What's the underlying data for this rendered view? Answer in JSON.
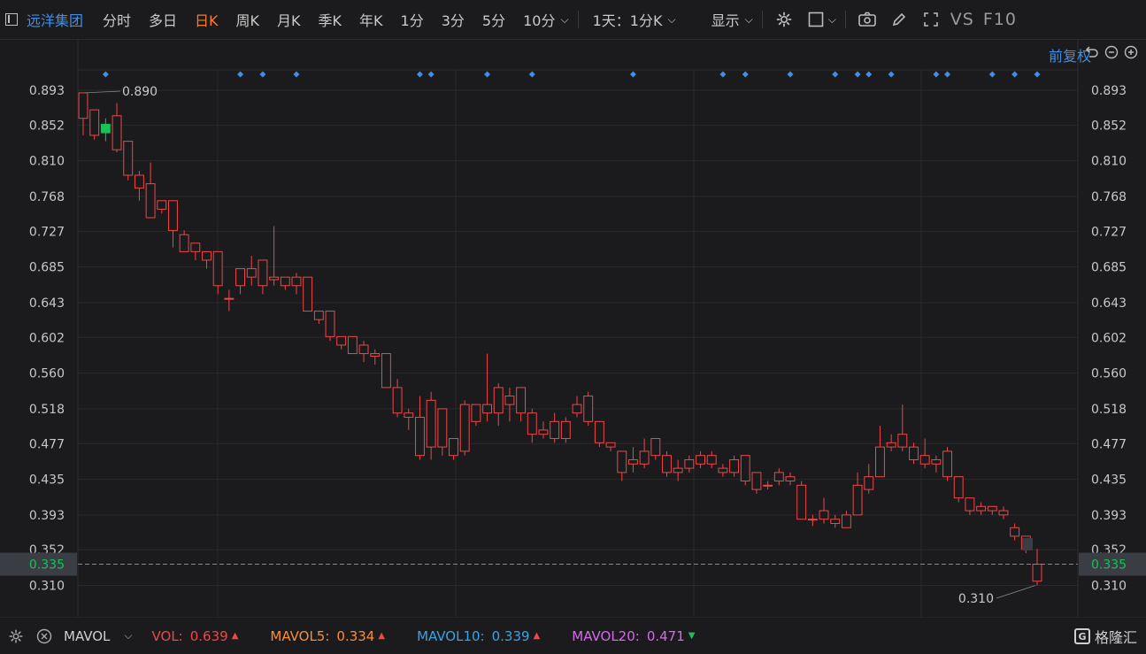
{
  "toolbar": {
    "stock_name": "远洋集团",
    "tabs": [
      "分时",
      "多日",
      "日K",
      "周K",
      "月K",
      "季K",
      "年K",
      "1分",
      "3分",
      "5分",
      "10分"
    ],
    "active_tab": "日K",
    "period_selector": "1天：1分K",
    "display_label": "显示",
    "vs_label": "VS",
    "f10_label": "F10"
  },
  "adjust_label": "前复权",
  "bottom": {
    "indicator": "MAVOL",
    "vol_label": "VOL:",
    "vol_value": "0.639",
    "mavol5_label": "MAVOL5:",
    "mavol5_value": "0.334",
    "mavol10_label": "MAVOL10:",
    "mavol10_value": "0.339",
    "mavol20_label": "MAVOL20:",
    "mavol20_value": "0.471",
    "watermark": "格隆汇"
  },
  "colors": {
    "up": "#f04646",
    "down": "#18c256",
    "mavol5": "#ff8c2e",
    "mavol10": "#36a4e8",
    "mavol20": "#d36be8",
    "accent": "#3f8fe6",
    "current_price_line": "#e6673a"
  },
  "chart_data": {
    "type": "candlestick",
    "y_ticks": [
      "0.893",
      "0.852",
      "0.810",
      "0.768",
      "0.727",
      "0.685",
      "0.643",
      "0.602",
      "0.560",
      "0.518",
      "0.477",
      "0.435",
      "0.393",
      "0.352",
      "0.310"
    ],
    "ylim": [
      0.272,
      0.917
    ],
    "current_price": "0.335",
    "high_label": "0.890",
    "low_label": "0.310",
    "grid": true,
    "candles": [
      {
        "o": 0.86,
        "h": 0.89,
        "l": 0.84,
        "c": 0.89
      },
      {
        "o": 0.84,
        "h": 0.87,
        "l": 0.835,
        "c": 0.87
      },
      {
        "o": 0.853,
        "h": 0.86,
        "l": 0.833,
        "c": 0.843
      },
      {
        "o": 0.823,
        "h": 0.878,
        "l": 0.82,
        "c": 0.863
      },
      {
        "o": 0.793,
        "h": 0.833,
        "l": 0.787,
        "c": 0.833
      },
      {
        "o": 0.778,
        "h": 0.798,
        "l": 0.763,
        "c": 0.793
      },
      {
        "o": 0.743,
        "h": 0.808,
        "l": 0.743,
        "c": 0.783
      },
      {
        "o": 0.753,
        "h": 0.763,
        "l": 0.748,
        "c": 0.763
      },
      {
        "o": 0.728,
        "h": 0.763,
        "l": 0.708,
        "c": 0.763
      },
      {
        "o": 0.703,
        "h": 0.728,
        "l": 0.703,
        "c": 0.723
      },
      {
        "o": 0.703,
        "h": 0.713,
        "l": 0.693,
        "c": 0.713
      },
      {
        "o": 0.693,
        "h": 0.703,
        "l": 0.683,
        "c": 0.703
      },
      {
        "o": 0.663,
        "h": 0.703,
        "l": 0.653,
        "c": 0.703
      },
      {
        "o": 0.648,
        "h": 0.658,
        "l": 0.633,
        "c": 0.648
      },
      {
        "o": 0.663,
        "h": 0.683,
        "l": 0.653,
        "c": 0.683
      },
      {
        "o": 0.673,
        "h": 0.698,
        "l": 0.663,
        "c": 0.683
      },
      {
        "o": 0.663,
        "h": 0.693,
        "l": 0.653,
        "c": 0.693
      },
      {
        "o": 0.67,
        "h": 0.733,
        "l": 0.663,
        "c": 0.673
      },
      {
        "o": 0.663,
        "h": 0.673,
        "l": 0.658,
        "c": 0.673
      },
      {
        "o": 0.663,
        "h": 0.678,
        "l": 0.653,
        "c": 0.673
      },
      {
        "o": 0.633,
        "h": 0.673,
        "l": 0.633,
        "c": 0.673
      },
      {
        "o": 0.623,
        "h": 0.633,
        "l": 0.618,
        "c": 0.633
      },
      {
        "o": 0.603,
        "h": 0.633,
        "l": 0.598,
        "c": 0.633
      },
      {
        "o": 0.593,
        "h": 0.603,
        "l": 0.588,
        "c": 0.603
      },
      {
        "o": 0.583,
        "h": 0.603,
        "l": 0.583,
        "c": 0.603
      },
      {
        "o": 0.583,
        "h": 0.598,
        "l": 0.573,
        "c": 0.593
      },
      {
        "o": 0.58,
        "h": 0.588,
        "l": 0.57,
        "c": 0.583
      },
      {
        "o": 0.543,
        "h": 0.583,
        "l": 0.543,
        "c": 0.583
      },
      {
        "o": 0.513,
        "h": 0.553,
        "l": 0.508,
        "c": 0.543
      },
      {
        "o": 0.508,
        "h": 0.518,
        "l": 0.493,
        "c": 0.513
      },
      {
        "o": 0.463,
        "h": 0.533,
        "l": 0.458,
        "c": 0.508
      },
      {
        "o": 0.473,
        "h": 0.538,
        "l": 0.458,
        "c": 0.528
      },
      {
        "o": 0.473,
        "h": 0.518,
        "l": 0.463,
        "c": 0.518
      },
      {
        "o": 0.463,
        "h": 0.483,
        "l": 0.458,
        "c": 0.483
      },
      {
        "o": 0.468,
        "h": 0.528,
        "l": 0.463,
        "c": 0.523
      },
      {
        "o": 0.503,
        "h": 0.523,
        "l": 0.498,
        "c": 0.523
      },
      {
        "o": 0.513,
        "h": 0.583,
        "l": 0.503,
        "c": 0.523
      },
      {
        "o": 0.513,
        "h": 0.548,
        "l": 0.498,
        "c": 0.543
      },
      {
        "o": 0.523,
        "h": 0.543,
        "l": 0.503,
        "c": 0.533
      },
      {
        "o": 0.513,
        "h": 0.543,
        "l": 0.503,
        "c": 0.543
      },
      {
        "o": 0.488,
        "h": 0.518,
        "l": 0.478,
        "c": 0.513
      },
      {
        "o": 0.488,
        "h": 0.503,
        "l": 0.483,
        "c": 0.493
      },
      {
        "o": 0.483,
        "h": 0.513,
        "l": 0.478,
        "c": 0.503
      },
      {
        "o": 0.483,
        "h": 0.508,
        "l": 0.478,
        "c": 0.503
      },
      {
        "o": 0.513,
        "h": 0.533,
        "l": 0.508,
        "c": 0.523
      },
      {
        "o": 0.503,
        "h": 0.538,
        "l": 0.498,
        "c": 0.533
      },
      {
        "o": 0.478,
        "h": 0.503,
        "l": 0.473,
        "c": 0.503
      },
      {
        "o": 0.473,
        "h": 0.478,
        "l": 0.468,
        "c": 0.478
      },
      {
        "o": 0.443,
        "h": 0.468,
        "l": 0.433,
        "c": 0.468
      },
      {
        "o": 0.453,
        "h": 0.473,
        "l": 0.443,
        "c": 0.458
      },
      {
        "o": 0.453,
        "h": 0.483,
        "l": 0.448,
        "c": 0.468
      },
      {
        "o": 0.463,
        "h": 0.483,
        "l": 0.458,
        "c": 0.483
      },
      {
        "o": 0.443,
        "h": 0.468,
        "l": 0.438,
        "c": 0.463
      },
      {
        "o": 0.443,
        "h": 0.458,
        "l": 0.433,
        "c": 0.448
      },
      {
        "o": 0.448,
        "h": 0.463,
        "l": 0.443,
        "c": 0.458
      },
      {
        "o": 0.453,
        "h": 0.468,
        "l": 0.448,
        "c": 0.463
      },
      {
        "o": 0.453,
        "h": 0.468,
        "l": 0.448,
        "c": 0.463
      },
      {
        "o": 0.443,
        "h": 0.453,
        "l": 0.438,
        "c": 0.448
      },
      {
        "o": 0.443,
        "h": 0.463,
        "l": 0.438,
        "c": 0.458
      },
      {
        "o": 0.433,
        "h": 0.463,
        "l": 0.428,
        "c": 0.463
      },
      {
        "o": 0.423,
        "h": 0.443,
        "l": 0.418,
        "c": 0.443
      },
      {
        "o": 0.428,
        "h": 0.433,
        "l": 0.423,
        "c": 0.428
      },
      {
        "o": 0.433,
        "h": 0.448,
        "l": 0.428,
        "c": 0.443
      },
      {
        "o": 0.433,
        "h": 0.443,
        "l": 0.428,
        "c": 0.438
      },
      {
        "o": 0.388,
        "h": 0.433,
        "l": 0.388,
        "c": 0.428
      },
      {
        "o": 0.388,
        "h": 0.393,
        "l": 0.38,
        "c": 0.388
      },
      {
        "o": 0.388,
        "h": 0.413,
        "l": 0.383,
        "c": 0.398
      },
      {
        "o": 0.383,
        "h": 0.393,
        "l": 0.378,
        "c": 0.388
      },
      {
        "o": 0.378,
        "h": 0.398,
        "l": 0.378,
        "c": 0.393
      },
      {
        "o": 0.393,
        "h": 0.443,
        "l": 0.393,
        "c": 0.428
      },
      {
        "o": 0.423,
        "h": 0.453,
        "l": 0.418,
        "c": 0.438
      },
      {
        "o": 0.438,
        "h": 0.498,
        "l": 0.438,
        "c": 0.473
      },
      {
        "o": 0.473,
        "h": 0.488,
        "l": 0.468,
        "c": 0.478
      },
      {
        "o": 0.473,
        "h": 0.523,
        "l": 0.468,
        "c": 0.488
      },
      {
        "o": 0.458,
        "h": 0.478,
        "l": 0.453,
        "c": 0.473
      },
      {
        "o": 0.453,
        "h": 0.483,
        "l": 0.448,
        "c": 0.463
      },
      {
        "o": 0.453,
        "h": 0.463,
        "l": 0.443,
        "c": 0.458
      },
      {
        "o": 0.438,
        "h": 0.473,
        "l": 0.433,
        "c": 0.468
      },
      {
        "o": 0.413,
        "h": 0.438,
        "l": 0.408,
        "c": 0.438
      },
      {
        "o": 0.398,
        "h": 0.413,
        "l": 0.393,
        "c": 0.413
      },
      {
        "o": 0.398,
        "h": 0.408,
        "l": 0.393,
        "c": 0.403
      },
      {
        "o": 0.398,
        "h": 0.403,
        "l": 0.393,
        "c": 0.403
      },
      {
        "o": 0.393,
        "h": 0.403,
        "l": 0.388,
        "c": 0.398
      },
      {
        "o": 0.368,
        "h": 0.383,
        "l": 0.363,
        "c": 0.378
      },
      {
        "o": 0.353,
        "h": 0.368,
        "l": 0.348,
        "c": 0.368
      },
      {
        "o": 0.315,
        "h": 0.353,
        "l": 0.31,
        "c": 0.335
      }
    ],
    "event_marker_candles": [
      2,
      14,
      16,
      19,
      30,
      31,
      36,
      40,
      49,
      57,
      59,
      63,
      67,
      69,
      70,
      72,
      76,
      77,
      81,
      83,
      85
    ]
  }
}
